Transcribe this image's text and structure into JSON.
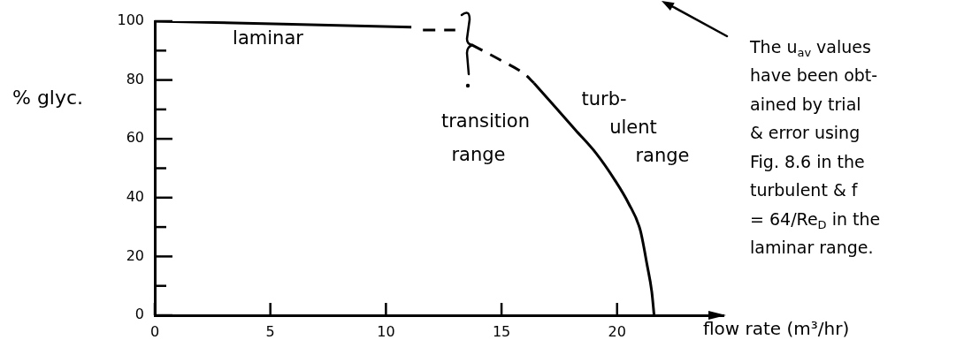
{
  "chart_data": {
    "type": "line",
    "xlabel": "flow rate (m³/hr)",
    "ylabel": "% glyc.",
    "xlim": [
      0,
      24.6
    ],
    "xticks": [
      0,
      5,
      10,
      15,
      20
    ],
    "ylim": [
      0,
      100
    ],
    "yticks": [
      0,
      {
        "value": 10,
        "label": null
      },
      20,
      {
        "value": 30,
        "label": null
      },
      40,
      {
        "value": 50,
        "label": null
      },
      60,
      {
        "value": 70,
        "label": null
      },
      80,
      {
        "value": 90,
        "label": null
      },
      100
    ],
    "grid": false,
    "marker": "none",
    "series": [
      {
        "color": "#000000",
        "line_style": "solid",
        "x": [
          0,
          11.1
        ],
        "values": [
          100,
          98
        ]
      },
      {
        "color": "#000000",
        "line_style": "dashed",
        "x": [
          11.6,
          13.0,
          13.4,
          13.7,
          14.9,
          16.0,
          16.4
        ],
        "values": [
          97,
          97,
          null,
          92,
          87,
          82,
          79
        ]
      },
      {
        "color": "#000000",
        "line_style": "solid",
        "x": [
          16.4,
          17.3,
          18.2,
          19.1,
          19.9,
          20.5,
          21.0,
          21.3,
          21.5,
          21.6
        ],
        "values": [
          79,
          71,
          63,
          55,
          46,
          38,
          29,
          17,
          8,
          0
        ]
      }
    ],
    "annotations": [
      "laminar",
      "transition\nrange",
      "turb-\nulent\nrange",
      "The u$_{av}$ values\nhave been obt-\nained by trial\n& error using\nFig. 8.6 in the\nturbulent & f\n= 64/Re$_{D}$ in the\nlaminar range."
    ]
  }
}
